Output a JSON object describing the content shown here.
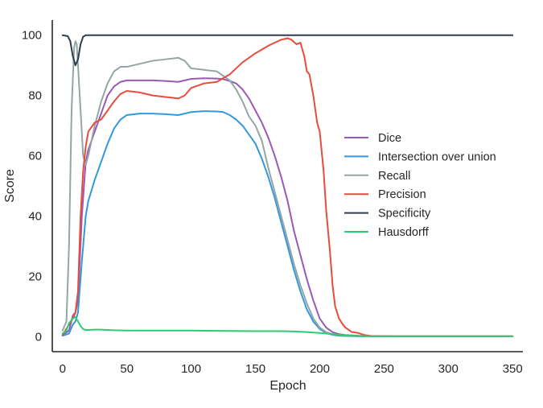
{
  "chart_data": {
    "type": "line",
    "title": "",
    "xlabel": "Epoch",
    "ylabel": "Score",
    "xlim": [
      -8,
      358
    ],
    "ylim": [
      -5,
      105
    ],
    "xticks": [
      0,
      50,
      100,
      150,
      200,
      250,
      300,
      350
    ],
    "yticks": [
      0,
      20,
      40,
      60,
      80,
      100
    ],
    "grid": false,
    "legend_position": "center-right",
    "series": [
      {
        "name": "Dice",
        "color": "#9b59b6",
        "x": [
          0,
          5,
          8,
          10,
          12,
          15,
          18,
          20,
          25,
          30,
          35,
          40,
          45,
          50,
          60,
          70,
          80,
          90,
          95,
          100,
          110,
          120,
          125,
          130,
          135,
          140,
          145,
          150,
          155,
          160,
          165,
          170,
          175,
          180,
          185,
          190,
          195,
          200,
          205,
          210,
          215,
          220,
          230,
          240,
          260,
          300,
          350
        ],
        "y": [
          0.5,
          2,
          7,
          8,
          12,
          40,
          58,
          62,
          68,
          74,
          80,
          83,
          84.5,
          85,
          85,
          85,
          84.8,
          84.5,
          85,
          85.5,
          85.7,
          85.6,
          85.4,
          84.8,
          84,
          82,
          79,
          75,
          71,
          66,
          60,
          53,
          45,
          35,
          27,
          19,
          12,
          6,
          3,
          1.5,
          0.8,
          0.5,
          0.3,
          0.2,
          0.1,
          0.1,
          0.1
        ]
      },
      {
        "name": "Intersection over union",
        "color": "#3498db",
        "x": [
          0,
          5,
          8,
          10,
          12,
          15,
          18,
          20,
          25,
          30,
          35,
          40,
          45,
          50,
          60,
          70,
          80,
          90,
          95,
          100,
          110,
          120,
          125,
          130,
          135,
          140,
          145,
          150,
          155,
          160,
          165,
          170,
          175,
          180,
          185,
          190,
          195,
          200,
          205,
          210,
          215,
          220,
          230,
          240,
          260,
          300,
          350
        ],
        "y": [
          0.3,
          1,
          4,
          5,
          8,
          25,
          40,
          45,
          52,
          58,
          64,
          69,
          72,
          73.5,
          74,
          74,
          73.8,
          73.5,
          74,
          74.5,
          74.8,
          74.7,
          74.5,
          73.5,
          72,
          70,
          67,
          64,
          59,
          53,
          46,
          38,
          30,
          22,
          15,
          9,
          5,
          2.5,
          1.2,
          0.6,
          0.3,
          0.2,
          0.1,
          0.1,
          0.1,
          0.1,
          0.1
        ]
      },
      {
        "name": "Recall",
        "color": "#95a5a6",
        "x": [
          0,
          3,
          5,
          7,
          9,
          10,
          11,
          12,
          14,
          16,
          18,
          20,
          25,
          30,
          35,
          40,
          45,
          50,
          60,
          70,
          80,
          90,
          95,
          100,
          110,
          120,
          130,
          135,
          140,
          145,
          150,
          155,
          160,
          165,
          170,
          175,
          180,
          185,
          190,
          195,
          200,
          205,
          210,
          220,
          240,
          300,
          350
        ],
        "y": [
          2,
          5,
          30,
          75,
          96,
          98,
          97,
          90,
          75,
          60,
          57,
          60,
          70,
          78,
          84,
          88,
          89.5,
          89.5,
          90.5,
          91.5,
          92,
          92.5,
          91.5,
          89,
          88.5,
          88,
          85,
          82,
          78,
          73,
          70,
          65,
          56,
          48,
          40,
          32,
          24,
          17,
          11,
          6,
          3,
          1.5,
          0.8,
          0.3,
          0.1,
          0.1,
          0.1
        ]
      },
      {
        "name": "Precision",
        "color": "#e74c3c",
        "x": [
          0,
          5,
          8,
          10,
          12,
          14,
          16,
          18,
          20,
          25,
          30,
          35,
          40,
          45,
          50,
          60,
          70,
          80,
          90,
          95,
          100,
          110,
          120,
          130,
          140,
          150,
          160,
          170,
          175,
          178,
          182,
          185,
          188,
          190,
          192,
          195,
          198,
          200,
          203,
          205,
          208,
          210,
          212,
          215,
          218,
          220,
          225,
          230,
          235,
          240,
          250,
          300,
          350
        ],
        "y": [
          0.5,
          4,
          6,
          8,
          15,
          40,
          55,
          63,
          68,
          71,
          72,
          75,
          78,
          80.5,
          81.5,
          81,
          80,
          79.5,
          79,
          80,
          82.5,
          84,
          84.5,
          87,
          91,
          94,
          96.5,
          98.5,
          99,
          98.5,
          97,
          97.5,
          93,
          88,
          87,
          80,
          71,
          68,
          55,
          42,
          28,
          17,
          10,
          6,
          4,
          3,
          1.5,
          1.2,
          0.5,
          0.2,
          0.1,
          0.1,
          0.1
        ]
      },
      {
        "name": "Specificity",
        "color": "#2c3e50",
        "x": [
          0,
          4,
          6,
          8,
          10,
          12,
          14,
          16,
          18,
          20,
          25,
          30,
          50,
          100,
          150,
          200,
          250,
          300,
          350
        ],
        "y": [
          100,
          99.7,
          98,
          93,
          90,
          92,
          97,
          99.5,
          100,
          100,
          100,
          100,
          100,
          100,
          100,
          100,
          100,
          100,
          100
        ]
      },
      {
        "name": "Hausdorff",
        "color": "#2ecc71",
        "x": [
          0,
          3,
          5,
          8,
          10,
          12,
          14,
          16,
          18,
          20,
          25,
          30,
          40,
          50,
          80,
          100,
          120,
          150,
          170,
          180,
          190,
          200,
          210,
          220,
          230,
          240,
          260,
          300,
          350
        ],
        "y": [
          1,
          2,
          4.5,
          6,
          6.5,
          5,
          3.5,
          2.5,
          2.2,
          2.2,
          2.3,
          2.3,
          2.1,
          2,
          2,
          2,
          1.9,
          1.8,
          1.8,
          1.7,
          1.5,
          1.2,
          0.8,
          0.4,
          0.2,
          0.1,
          0.1,
          0.1,
          0.1
        ]
      }
    ]
  }
}
